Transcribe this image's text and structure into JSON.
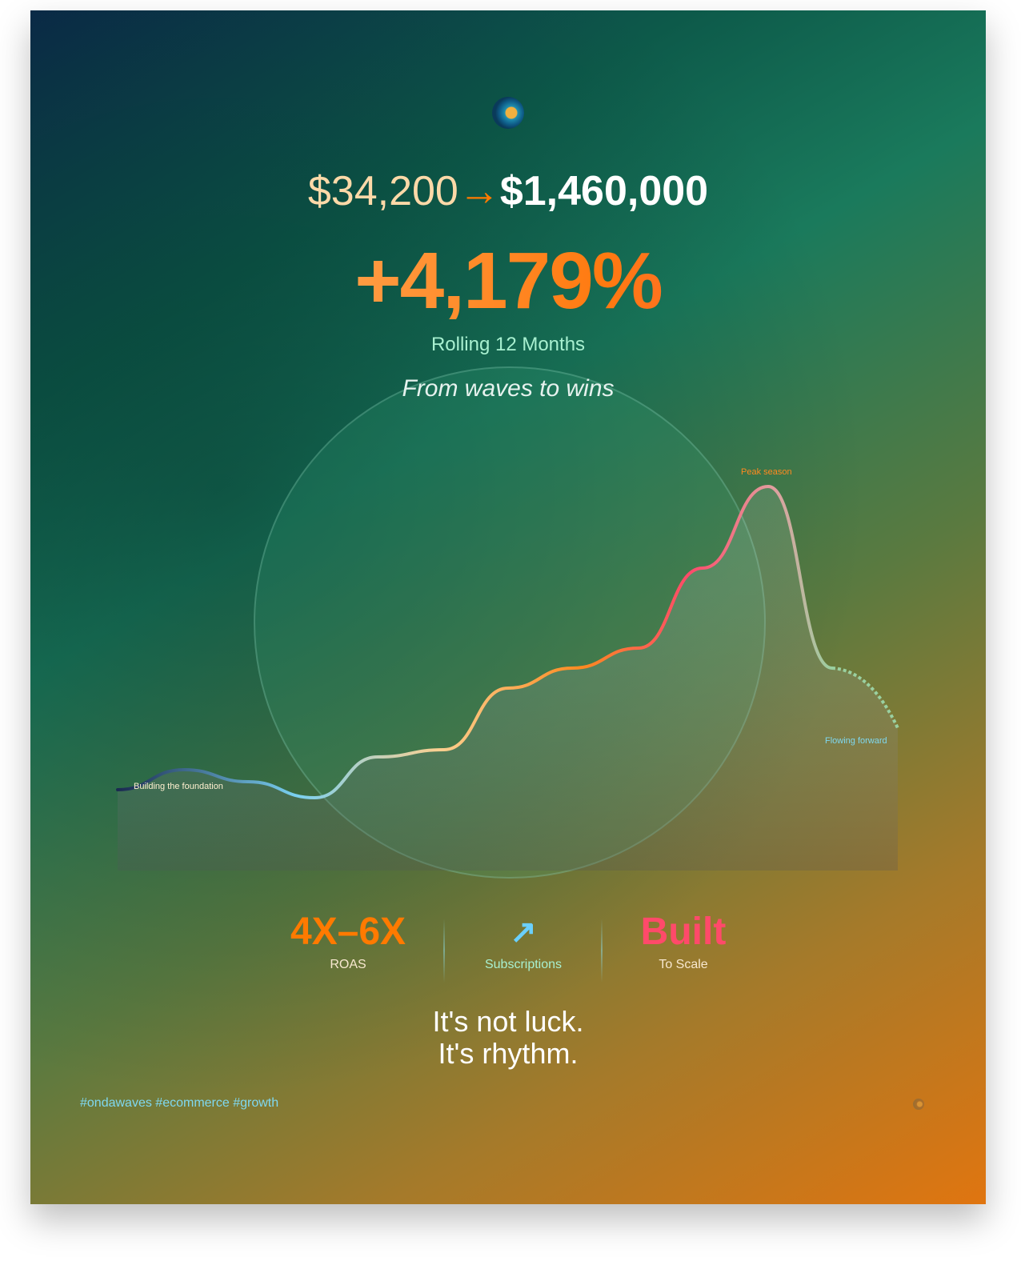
{
  "header": {
    "logo": "ondawaves-wave-logo",
    "from_amount": "$34,200",
    "arrow": "→",
    "to_amount": "$1,460,000"
  },
  "growth": {
    "percent": "+4,179%",
    "period": "Rolling 12 Months"
  },
  "tagline": "From waves to wins",
  "chart": {
    "type": "line",
    "annotations": {
      "start": "Building the foundation",
      "peak": "Peak season",
      "end": "Flowing forward"
    },
    "colors": {
      "start": "#1a2a50",
      "mid": "#fcd090",
      "rise": "#ff7a10",
      "peak": "#ff4a6a",
      "end": "#9ad0a0"
    }
  },
  "stats": [
    {
      "value": "4X–6X",
      "label": "ROAS",
      "color": "#ff7a00"
    },
    {
      "value": "↗",
      "label": "Subscriptions",
      "color": "#6ad0ff",
      "icon": "arrow-up-right-icon"
    },
    {
      "value": "Built",
      "label": "To Scale",
      "color": "#ff4a6a"
    }
  ],
  "closing": {
    "line1": "It's not luck.",
    "line2": "It's rhythm."
  },
  "hashtags": "#ondawaves #ecommerce #growth"
}
